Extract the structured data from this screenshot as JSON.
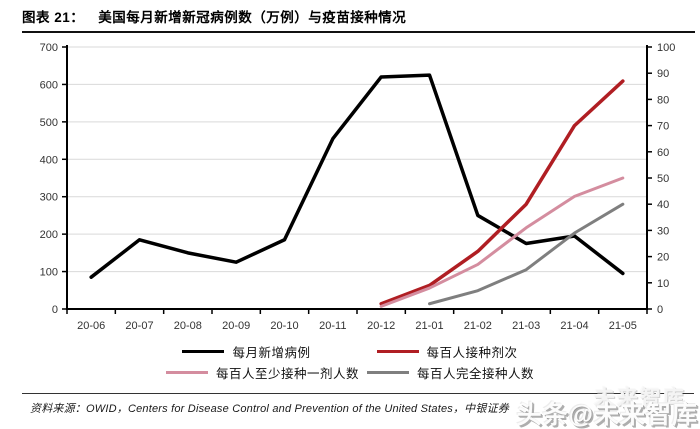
{
  "header": {
    "figure_label": "图表 21：",
    "title": "美国每月新增新冠病例数（万例）与疫苗接种情况"
  },
  "chart_data": {
    "type": "line",
    "categories": [
      "20-06",
      "20-07",
      "20-08",
      "20-09",
      "20-10",
      "20-11",
      "20-12",
      "21-01",
      "21-02",
      "21-03",
      "21-04",
      "21-05"
    ],
    "series": [
      {
        "name": "每月新增病例",
        "axis": "left",
        "color": "#000000",
        "width": 3.5,
        "values": [
          85,
          185,
          150,
          125,
          185,
          455,
          620,
          625,
          250,
          175,
          195,
          95
        ]
      },
      {
        "name": "每百人接种剂次",
        "axis": "right",
        "color": "#b01e23",
        "width": 3.5,
        "values": [
          null,
          null,
          null,
          null,
          null,
          null,
          2,
          9,
          22,
          40,
          70,
          87
        ]
      },
      {
        "name": "每百人至少接种一剂人数",
        "axis": "right",
        "color": "#d48d9f",
        "width": 3,
        "values": [
          null,
          null,
          null,
          null,
          null,
          null,
          1,
          8,
          17,
          31,
          43,
          50
        ]
      },
      {
        "name": "每百人完全接种人数",
        "axis": "right",
        "color": "#7f7f7f",
        "width": 3,
        "values": [
          null,
          null,
          null,
          null,
          null,
          null,
          null,
          2,
          7,
          15,
          29,
          40
        ]
      }
    ],
    "left_axis": {
      "min": 0,
      "max": 700,
      "step": 100
    },
    "right_axis": {
      "min": 0,
      "max": 100,
      "step": 10
    },
    "grid": true,
    "grid_color": "#d9d9d9",
    "legend_position": "bottom"
  },
  "source": {
    "label": "资料来源：",
    "text": "OWID，Centers for Disease Control and Prevention of the United States，中银证券"
  },
  "watermark": {
    "line1": "未来智库",
    "line2": "头条@未来智库"
  }
}
